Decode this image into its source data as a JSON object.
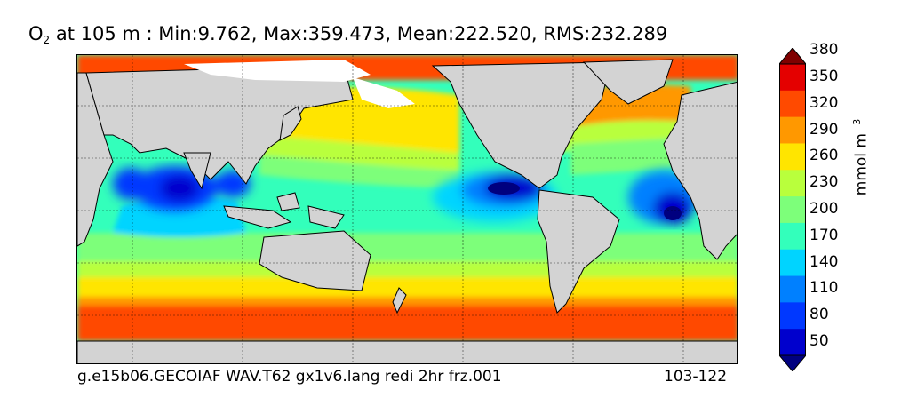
{
  "title": {
    "prefix": "O",
    "subscript": "2",
    "text": " at 105 m : Min:9.762, Max:359.473, Mean:222.520, RMS:232.289"
  },
  "footer": {
    "left": "g.e15b06.GECOIAF WAV.T62 gx1v6.lang redi 2hr frz.001",
    "right": "103-122"
  },
  "colorbar": {
    "units_base": "mmol m",
    "units_exp": "−3",
    "levels": [
      "50",
      "80",
      "110",
      "140",
      "170",
      "200",
      "230",
      "260",
      "290",
      "320",
      "350",
      "380"
    ],
    "colors": [
      "#00007f",
      "#0000cd",
      "#0038ff",
      "#0080ff",
      "#00d4ff",
      "#33ffbb",
      "#7dff7a",
      "#b9ff3c",
      "#ffe500",
      "#ff9800",
      "#ff4a00",
      "#e40000",
      "#7f0000"
    ]
  },
  "map": {
    "land_color": "#d3d3d3",
    "nodata_color": "#ffffff",
    "gridlines": "dashed"
  }
}
